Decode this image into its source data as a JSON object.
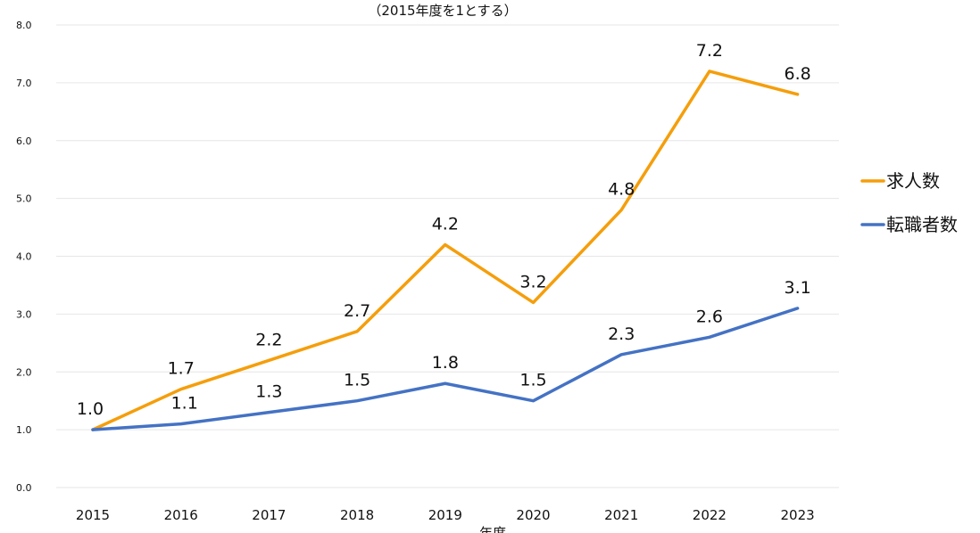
{
  "chart_data": {
    "type": "line",
    "title": "",
    "subtitle": "（2015年度を1とする）",
    "xlabel": "年度",
    "ylabel": "",
    "categories": [
      "2015",
      "2016",
      "2017",
      "2018",
      "2019",
      "2020",
      "2021",
      "2022",
      "2023"
    ],
    "ylim": [
      0,
      8
    ],
    "yticks": [
      "0.0",
      "1.0",
      "2.0",
      "3.0",
      "4.0",
      "5.0",
      "6.0",
      "7.0",
      "8.0"
    ],
    "grid": true,
    "legend_position": "right",
    "series": [
      {
        "name": "求人数",
        "color": "#F59E0B",
        "values": [
          1.0,
          1.7,
          2.2,
          2.7,
          4.2,
          3.2,
          4.8,
          7.2,
          6.8
        ],
        "labels": [
          "1.0",
          "1.7",
          "2.2",
          "2.7",
          "4.2",
          "3.2",
          "4.8",
          "7.2",
          "6.8"
        ]
      },
      {
        "name": "転職者数",
        "color": "#4472C4",
        "values": [
          1.0,
          1.1,
          1.3,
          1.5,
          1.8,
          1.5,
          2.3,
          2.6,
          3.1
        ],
        "labels": [
          "",
          "1.1",
          "1.3",
          "1.5",
          "1.8",
          "1.5",
          "2.3",
          "2.6",
          "3.1"
        ]
      }
    ]
  }
}
